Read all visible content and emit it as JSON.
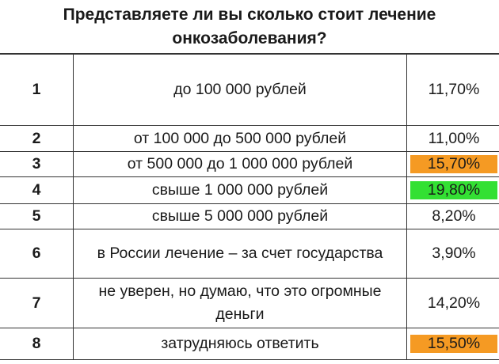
{
  "title": "Представляете ли вы сколько стоит лечение онкозаболевания?",
  "colors": {
    "highlight_orange": "#f59a23",
    "highlight_green": "#33e033",
    "border": "#333333"
  },
  "rows": [
    {
      "num": "1",
      "answer": "до 100 000 рублей",
      "percent": "11,70%",
      "highlight": ""
    },
    {
      "num": "2",
      "answer": "от 100 000 до 500 000 рублей",
      "percent": "11,00%",
      "highlight": ""
    },
    {
      "num": "3",
      "answer": "от 500 000 до 1 000 000 рублей",
      "percent": "15,70%",
      "highlight": "orange"
    },
    {
      "num": "4",
      "answer": "свыше 1 000 000 рублей",
      "percent": "19,80%",
      "highlight": "green"
    },
    {
      "num": "5",
      "answer": "свыше 5 000 000 рублей",
      "percent": "8,20%",
      "highlight": ""
    },
    {
      "num": "6",
      "answer": "в России лечение – за счет государства",
      "percent": "3,90%",
      "highlight": ""
    },
    {
      "num": "7",
      "answer": "не уверен, но думаю, что это огромные деньги",
      "percent": "14,20%",
      "highlight": ""
    },
    {
      "num": "8",
      "answer": "затрудняюсь ответить",
      "percent": "15,50%",
      "highlight": "orange"
    }
  ]
}
